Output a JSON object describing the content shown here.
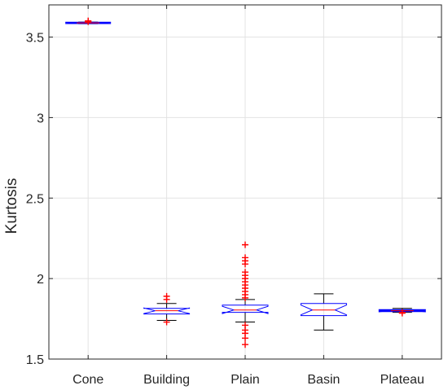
{
  "chart_data": {
    "type": "box",
    "title": "",
    "xlabel": "",
    "ylabel": "Kurtosis",
    "ylim": [
      1.5,
      3.7
    ],
    "yticks": [
      1.5,
      2,
      2.5,
      3,
      3.5
    ],
    "ytick_labels": [
      "1.5",
      "2",
      "2.5",
      "3",
      "3.5"
    ],
    "grid": true,
    "notched": true,
    "colors": {
      "box": "#0000ff",
      "median": "#ff0000",
      "whisker": "#000000",
      "outlier": "#ff0000",
      "grid": "#e3e3e3"
    },
    "categories": [
      "Cone",
      "Building",
      "Plain",
      "Basin",
      "Plateau"
    ],
    "boxes": [
      {
        "name": "Cone",
        "whisker_low": 3.583,
        "q1": 3.586,
        "median": 3.588,
        "q3": 3.59,
        "whisker_high": 3.593,
        "outliers": [
          3.595,
          3.598,
          3.601
        ]
      },
      {
        "name": "Building",
        "whisker_low": 1.74,
        "q1": 1.78,
        "median": 1.8,
        "q3": 1.815,
        "whisker_high": 1.845,
        "outliers": [
          1.73,
          1.87,
          1.89
        ]
      },
      {
        "name": "Plain",
        "whisker_low": 1.73,
        "q1": 1.79,
        "median": 1.805,
        "q3": 1.835,
        "whisker_high": 1.87,
        "outliers": [
          1.59,
          1.63,
          1.66,
          1.68,
          1.71,
          1.88,
          1.9,
          1.92,
          1.94,
          1.96,
          1.98,
          2.0,
          2.02,
          2.04,
          2.09,
          2.11,
          2.13,
          2.21
        ]
      },
      {
        "name": "Basin",
        "whisker_low": 1.68,
        "q1": 1.77,
        "median": 1.805,
        "q3": 1.845,
        "whisker_high": 1.905,
        "outliers": []
      },
      {
        "name": "Plateau",
        "whisker_low": 1.79,
        "q1": 1.797,
        "median": 1.8,
        "q3": 1.805,
        "whisker_high": 1.815,
        "outliers": [
          1.785,
          1.79
        ]
      }
    ]
  }
}
